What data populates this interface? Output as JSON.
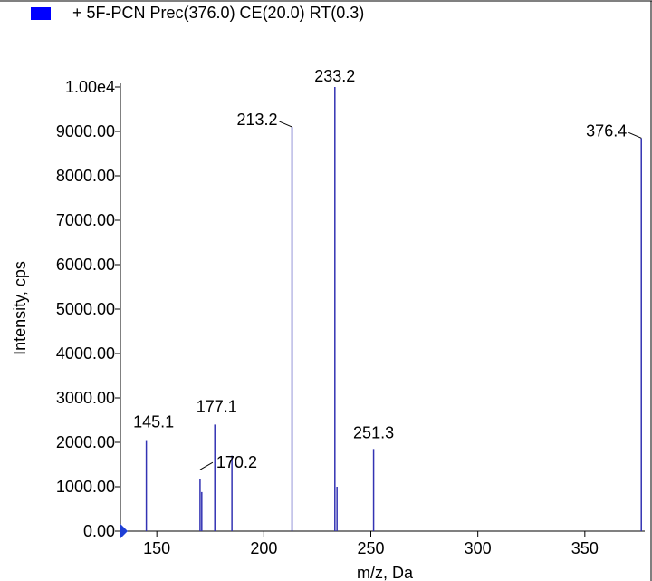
{
  "legend": {
    "swatch_color": "#0000ff",
    "label": "+ 5F-PCN Prec(376.0) CE(20.0) RT(0.3)"
  },
  "chart_data": {
    "type": "bar",
    "subtype": "mass-spectrum-sticks",
    "series_color": "#3333b3",
    "marker_color": "#1f3fd6",
    "xlabel": "m/z, Da",
    "ylabel": "Intensity, cps",
    "xlim": [
      133,
      378
    ],
    "ylim": [
      0,
      10000
    ],
    "x_ticks": [
      150,
      200,
      250,
      300,
      350
    ],
    "x_tick_labels": [
      "150",
      "200",
      "250",
      "300",
      "350"
    ],
    "y_ticks": [
      0,
      1000,
      2000,
      3000,
      4000,
      5000,
      6000,
      7000,
      8000,
      9000,
      10000
    ],
    "y_tick_labels": [
      "0.00",
      "1000.00",
      "2000.00",
      "3000.00",
      "4000.00",
      "5000.00",
      "6000.00",
      "7000.00",
      "8000.00",
      "9000.00",
      "1.00e4"
    ],
    "peaks": [
      {
        "x": 145.1,
        "y": 2050,
        "label": "145.1"
      },
      {
        "x": 170.2,
        "y": 1180,
        "label": "170.2"
      },
      {
        "x": 171.0,
        "y": 880,
        "label": ""
      },
      {
        "x": 177.1,
        "y": 2400,
        "label": "177.1"
      },
      {
        "x": 185.1,
        "y": 1700,
        "label": ""
      },
      {
        "x": 213.2,
        "y": 9100,
        "label": "213.2"
      },
      {
        "x": 233.2,
        "y": 10000,
        "label": "233.2"
      },
      {
        "x": 234.2,
        "y": 1000,
        "label": ""
      },
      {
        "x": 251.3,
        "y": 1850,
        "label": "251.3"
      },
      {
        "x": 376.4,
        "y": 8850,
        "label": "376.4"
      }
    ]
  }
}
